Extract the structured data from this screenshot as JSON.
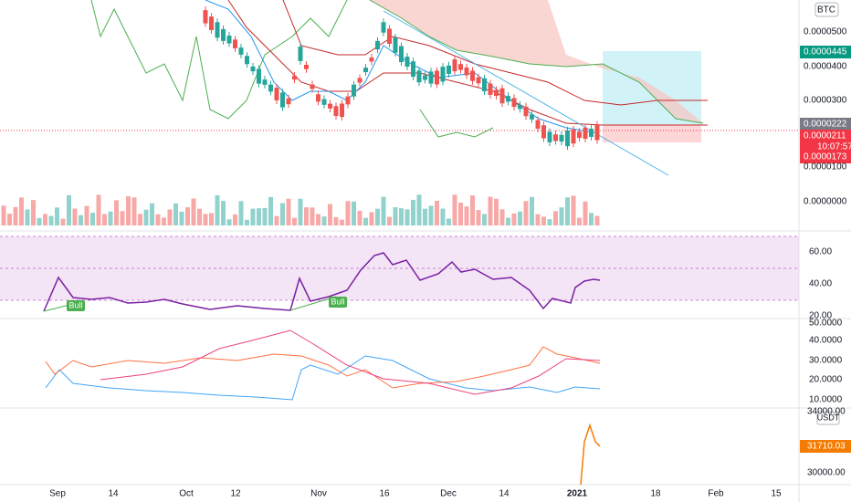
{
  "price_axis": {
    "unit": "BTC",
    "labels": [
      "0.0000500",
      "0.0000400",
      "0.0000300",
      "0.0000100",
      "0.0000000"
    ]
  },
  "price_badges": {
    "target": "0.0000445",
    "entry": "0.0000222",
    "last": "0.0000211",
    "countdown": "10:07:57",
    "stop": "0.0000173"
  },
  "rsi_axis": [
    "60.00",
    "40.00",
    "20.00"
  ],
  "signals": [
    "Bull",
    "Bull"
  ],
  "dmi_axis": [
    "50.0000",
    "40.0000",
    "30.0000",
    "20.0000",
    "10.0000"
  ],
  "usdt_axis": {
    "unit": "USDT",
    "labels": [
      "34000.00",
      "30000.00"
    ],
    "last": "31710.03"
  },
  "time_axis": [
    "Sep",
    "14",
    "Oct",
    "12",
    "Nov",
    "16",
    "Dec",
    "14",
    "2021",
    "18",
    "Feb",
    "15"
  ]
}
